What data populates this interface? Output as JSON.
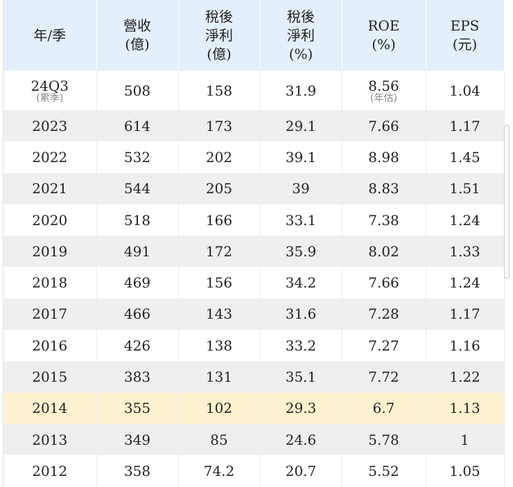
{
  "headers": [
    [
      "年/季"
    ],
    [
      "營收",
      "(億)"
    ],
    [
      "稅後",
      "淨利",
      "(億)"
    ],
    [
      "稅後",
      "淨利",
      "(%)"
    ],
    [
      "ROE",
      "(%)"
    ],
    [
      "EPS",
      "(元)"
    ]
  ],
  "first_row": {
    "period": "24Q3",
    "period_note": "(累季)",
    "revenue": "508",
    "net_income": "158",
    "net_margin": "31.9",
    "roe": "8.56",
    "roe_note": "(年估)",
    "eps": "1.04"
  },
  "rows": [
    [
      "2023",
      "614",
      "173",
      "29.1",
      "7.66",
      "1.17"
    ],
    [
      "2022",
      "532",
      "202",
      "39.1",
      "8.98",
      "1.45"
    ],
    [
      "2021",
      "544",
      "205",
      "39",
      "8.83",
      "1.51"
    ],
    [
      "2020",
      "518",
      "166",
      "33.1",
      "7.38",
      "1.24"
    ],
    [
      "2019",
      "491",
      "172",
      "35.9",
      "8.02",
      "1.33"
    ],
    [
      "2018",
      "469",
      "156",
      "34.2",
      "7.66",
      "1.24"
    ],
    [
      "2017",
      "466",
      "143",
      "31.6",
      "7.28",
      "1.17"
    ],
    [
      "2016",
      "426",
      "138",
      "33.2",
      "7.27",
      "1.16"
    ],
    [
      "2015",
      "383",
      "131",
      "35.1",
      "7.72",
      "1.22"
    ],
    [
      "2014",
      "355",
      "102",
      "29.3",
      "6.7",
      "1.13"
    ],
    [
      "2013",
      "349",
      "85",
      "24.6",
      "5.78",
      "1"
    ],
    [
      "2012",
      "358",
      "74.2",
      "20.7",
      "5.52",
      "1.05"
    ]
  ],
  "highlight_period": "2014",
  "colors": {
    "header_bg": "#e3f0fc",
    "stripe_bg": "#efefef",
    "highlight_bg": "#fdf2cf"
  }
}
